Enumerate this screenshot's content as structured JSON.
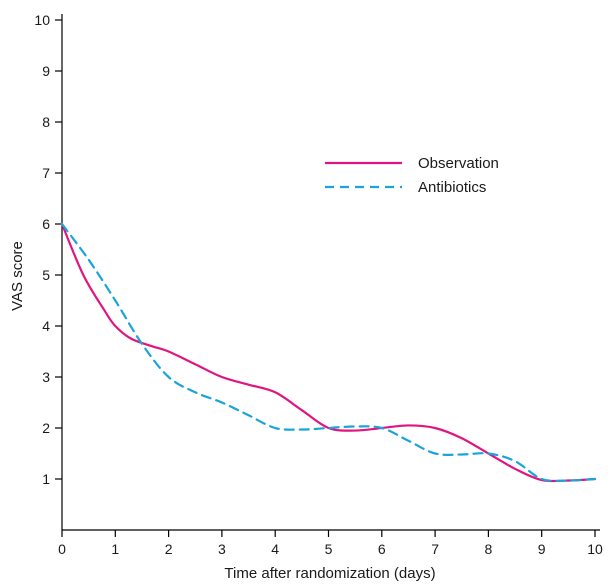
{
  "chart_data": {
    "type": "line",
    "xlabel": "Time after randomization (days)",
    "ylabel": "VAS score",
    "xlim": [
      0,
      10
    ],
    "ylim": [
      0,
      10
    ],
    "x_ticks": [
      "0",
      "1",
      "2",
      "3",
      "4",
      "5",
      "6",
      "7",
      "8",
      "9",
      "10"
    ],
    "y_ticks": [
      "1",
      "2",
      "3",
      "4",
      "5",
      "6",
      "7",
      "8",
      "9",
      "10"
    ],
    "grid": false,
    "legend_position": "upper-right",
    "series": [
      {
        "name": "Observation",
        "color": "#e0157f",
        "dash": "solid",
        "x": [
          0,
          0.4,
          0.8,
          1.0,
          1.3,
          1.7,
          2.0,
          2.5,
          3.0,
          3.5,
          4.0,
          4.5,
          5.0,
          5.5,
          6.0,
          6.5,
          7.0,
          7.5,
          8.0,
          8.5,
          9.0,
          9.5,
          10.0
        ],
        "values": [
          6.0,
          5.0,
          4.3,
          4.0,
          3.75,
          3.6,
          3.5,
          3.25,
          3.0,
          2.85,
          2.7,
          2.35,
          2.0,
          1.95,
          2.0,
          2.05,
          2.0,
          1.8,
          1.5,
          1.2,
          0.98,
          0.97,
          1.0
        ]
      },
      {
        "name": "Antibiotics",
        "color": "#1aa4dc",
        "dash": "dashed",
        "x": [
          0,
          0.5,
          1.0,
          1.5,
          2.0,
          2.5,
          3.0,
          3.5,
          4.0,
          4.5,
          5.0,
          5.5,
          6.0,
          6.5,
          7.0,
          7.5,
          8.0,
          8.5,
          9.0,
          9.5,
          10.0
        ],
        "values": [
          6.0,
          5.3,
          4.5,
          3.65,
          3.0,
          2.7,
          2.5,
          2.25,
          2.0,
          1.97,
          2.0,
          2.03,
          2.0,
          1.75,
          1.5,
          1.48,
          1.5,
          1.35,
          1.0,
          0.97,
          1.0
        ]
      }
    ]
  }
}
